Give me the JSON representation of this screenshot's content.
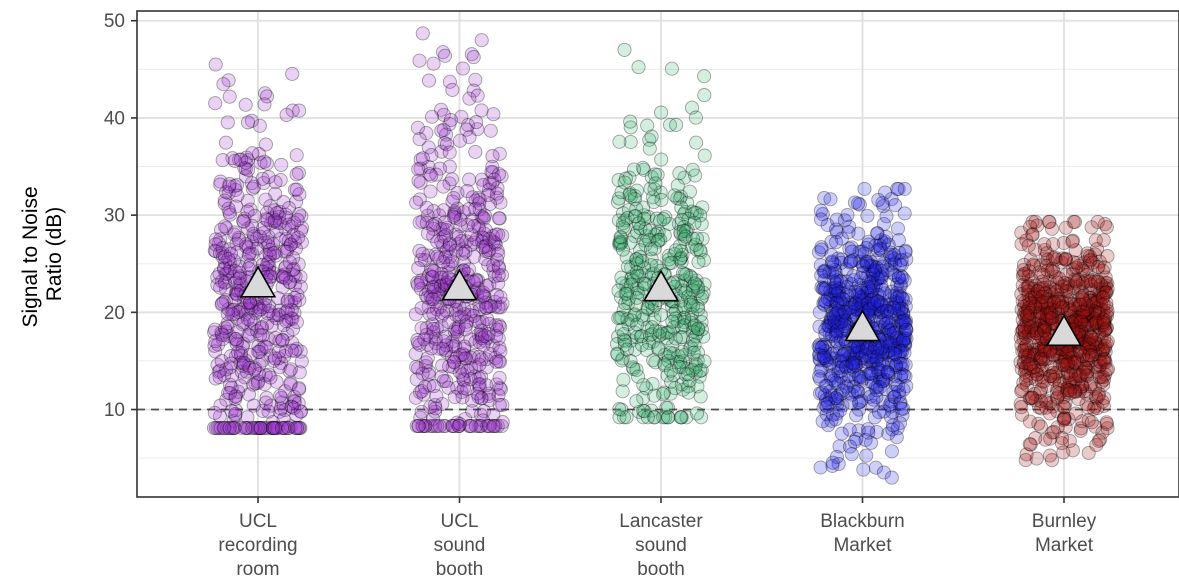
{
  "chart_data": {
    "type": "scatter",
    "subtype": "jitter-strip",
    "title": "",
    "ylabel_lines": [
      "Signal to Noise",
      "Ratio (dB)"
    ],
    "xlabel": "",
    "ylim": [
      1,
      51
    ],
    "yticks": [
      10,
      20,
      30,
      40,
      50
    ],
    "reference_line": {
      "y": 10,
      "style": "dashed",
      "color": "#4d4d4d"
    },
    "grid": true,
    "legend": "none",
    "mean_marker": {
      "shape": "triangle",
      "fill": "#d9d9d9",
      "stroke": "#000000"
    },
    "categories": [
      {
        "lines": [
          "UCL",
          "recording",
          "room"
        ],
        "color": "#9932cc",
        "mean": 23.0,
        "min": 8.1,
        "max": 45.5,
        "center": 21,
        "spread": 8.5,
        "n": 520
      },
      {
        "lines": [
          "UCL",
          "sound",
          "booth"
        ],
        "color": "#9932cc",
        "mean": 22.7,
        "min": 8.3,
        "max": 48.7,
        "center": 21,
        "spread": 8.5,
        "n": 520
      },
      {
        "lines": [
          "Lancaster",
          "sound",
          "booth"
        ],
        "color": "#3cb371",
        "mean": 22.6,
        "min": 9.2,
        "max": 47.0,
        "center": 22,
        "spread": 7.5,
        "n": 420
      },
      {
        "lines": [
          "Blackburn",
          "Market"
        ],
        "color": "#1e1ee6",
        "mean": 18.5,
        "min": 3.0,
        "max": 32.7,
        "center": 18.5,
        "spread": 5.0,
        "n": 720
      },
      {
        "lines": [
          "Burnley",
          "Market"
        ],
        "color": "#a01414",
        "mean": 18.0,
        "min": 4.8,
        "max": 29.3,
        "center": 18,
        "spread": 4.5,
        "n": 760
      }
    ]
  }
}
